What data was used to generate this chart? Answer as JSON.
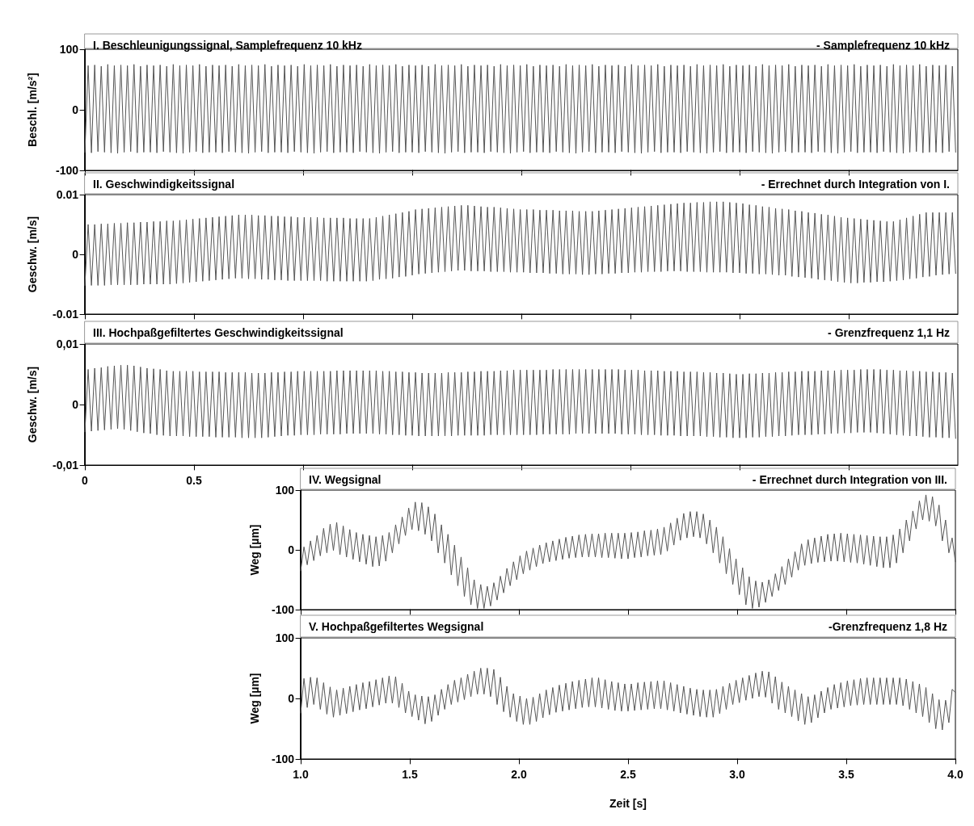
{
  "chart_data": [
    {
      "type": "line",
      "title": "I. Beschleunigungssignal, Samplefrequenz 10 kHz",
      "subtitle": "- Samplefrequenz 10 kHz",
      "ylabel": "Beschl. [m/s²]",
      "color": "#555555",
      "marker": "none",
      "tick_labels": "y",
      "xlim": [
        0,
        4
      ],
      "xticks": [
        0,
        0.5,
        {
          "value": 1,
          "label": null
        },
        {
          "value": 1.5,
          "label": null
        },
        {
          "value": 2,
          "label": null
        },
        {
          "value": 2.5,
          "label": null
        },
        {
          "value": 3,
          "label": null
        },
        {
          "value": 3.5,
          "label": null
        }
      ],
      "ylim": [
        -100,
        100
      ],
      "yticks": [
        -100,
        0,
        100
      ],
      "x": [
        0,
        0.015,
        0.03,
        0.045,
        0.06,
        0.075,
        0.09,
        0.105,
        0.12,
        0.135,
        0.15,
        0.165,
        0.18,
        0.195,
        0.21,
        0.225,
        0.24,
        0.255,
        0.27,
        0.285,
        0.3,
        0.315,
        0.33,
        0.345,
        0.36,
        0.375,
        0.39,
        0.405,
        0.42,
        0.435,
        0.45,
        0.465,
        0.48,
        0.495,
        0.51,
        0.525,
        0.54,
        0.555,
        0.57,
        0.585,
        0.6,
        0.615,
        0.63,
        0.645,
        0.66,
        0.675,
        0.69,
        0.705,
        0.72,
        0.735,
        0.75,
        0.765,
        0.78,
        0.795,
        0.81,
        0.825,
        0.84,
        0.855,
        0.87,
        0.885,
        0.9,
        0.915,
        0.93,
        0.945,
        0.96,
        0.975,
        0.99,
        1.005,
        1.02,
        1.035,
        1.05,
        1.065,
        1.08,
        1.095,
        1.11,
        1.125,
        1.14,
        1.155,
        1.17,
        1.185,
        1.2,
        1.215,
        1.23,
        1.245,
        1.26,
        1.275,
        1.29,
        1.305,
        1.32,
        1.335,
        1.35,
        1.365,
        1.38,
        1.395,
        1.41,
        1.425,
        1.44,
        1.455,
        1.47,
        1.485,
        1.5,
        1.515,
        1.53,
        1.545,
        1.56,
        1.575,
        1.59,
        1.605,
        1.62,
        1.635,
        1.65,
        1.665,
        1.68,
        1.695,
        1.71,
        1.725,
        1.74,
        1.755,
        1.77,
        1.785,
        1.8,
        1.815,
        1.83,
        1.845,
        1.86,
        1.875,
        1.89,
        1.905,
        1.92,
        1.935,
        1.95,
        1.965,
        1.98,
        1.995,
        2.01,
        2.025,
        2.04,
        2.055,
        2.07,
        2.085,
        2.1,
        2.115,
        2.13,
        2.145,
        2.16,
        2.175,
        2.19,
        2.205,
        2.22,
        2.235,
        2.25,
        2.265,
        2.28,
        2.295,
        2.31,
        2.325,
        2.34,
        2.355,
        2.37,
        2.385,
        2.4,
        2.415,
        2.43,
        2.445,
        2.46,
        2.475,
        2.49,
        2.505,
        2.52,
        2.535,
        2.55,
        2.565,
        2.58,
        2.595,
        2.61,
        2.625,
        2.64,
        2.655,
        2.67,
        2.685,
        2.7,
        2.715,
        2.73,
        2.745,
        2.76,
        2.775,
        2.79,
        2.805,
        2.82,
        2.835,
        2.85,
        2.865,
        2.88,
        2.895,
        2.91,
        2.925,
        2.94,
        2.955,
        2.97,
        2.985,
        3,
        3.015,
        3.03,
        3.045,
        3.06,
        3.075,
        3.09,
        3.105,
        3.12,
        3.135,
        3.15,
        3.165,
        3.18,
        3.195,
        3.21,
        3.225,
        3.24,
        3.255,
        3.27,
        3.285,
        3.3,
        3.315,
        3.33,
        3.345,
        3.36,
        3.375,
        3.39,
        3.405,
        3.42,
        3.435,
        3.45,
        3.465,
        3.48,
        3.495,
        3.51,
        3.525,
        3.54,
        3.555,
        3.57,
        3.585,
        3.6,
        3.615,
        3.63,
        3.645,
        3.66,
        3.675,
        3.69,
        3.705,
        3.72,
        3.735,
        3.75,
        3.765,
        3.78,
        3.795,
        3.81,
        3.825,
        3.84,
        3.855,
        3.87,
        3.885,
        3.9,
        3.915,
        3.93,
        3.945,
        3.96,
        3.975,
        3.99
      ],
      "values": [
        -70,
        73,
        -71,
        74,
        -69,
        72,
        -70,
        75,
        -71,
        73,
        -72,
        74,
        -70,
        73,
        -69,
        75,
        -71,
        72,
        -70,
        74,
        -70,
        73,
        -71,
        74,
        -69,
        72,
        -70,
        75,
        -71,
        73,
        -72,
        74,
        -70,
        73,
        -69,
        75,
        -71,
        72,
        -70,
        74,
        -70,
        73,
        -71,
        74,
        -69,
        72,
        -70,
        75,
        -71,
        73,
        -72,
        74,
        -70,
        73,
        -69,
        75,
        -71,
        72,
        -70,
        74,
        -70,
        73,
        -71,
        74,
        -69,
        72,
        -70,
        75,
        -71,
        73,
        -72,
        74,
        -70,
        73,
        -69,
        75,
        -71,
        72,
        -70,
        74,
        -70,
        73,
        -71,
        74,
        -69,
        72,
        -70,
        75,
        -71,
        73,
        -72,
        74,
        -70,
        73,
        -69,
        75,
        -71,
        72,
        -70,
        74,
        -70,
        73,
        -71,
        74,
        -69,
        72,
        -70,
        75,
        -71,
        73,
        -72,
        74,
        -70,
        73,
        -69,
        75,
        -71,
        72,
        -70,
        74,
        -70,
        73,
        -71,
        74,
        -69,
        72,
        -70,
        75,
        -71,
        73,
        -72,
        74,
        -70,
        73,
        -69,
        75,
        -71,
        72,
        -70,
        74,
        -70,
        73,
        -71,
        74,
        -69,
        72,
        -70,
        75,
        -71,
        73,
        -72,
        74,
        -70,
        73,
        -69,
        75,
        -71,
        72,
        -70,
        74,
        -70,
        73,
        -71,
        74,
        -69,
        72,
        -70,
        75,
        -71,
        73,
        -72,
        74,
        -70,
        73,
        -69,
        75,
        -71,
        72,
        -70,
        74,
        -70,
        73,
        -71,
        74,
        -69,
        72,
        -70,
        75,
        -71,
        73,
        -72,
        74,
        -70,
        73,
        -69,
        75,
        -71,
        72,
        -70,
        74,
        -70,
        73,
        -71,
        74,
        -69,
        72,
        -70,
        75,
        -71,
        73,
        -72,
        74,
        -70,
        73,
        -69,
        75,
        -71,
        72,
        -70,
        74,
        -70,
        73,
        -71,
        74,
        -69,
        72,
        -70,
        75,
        -71,
        73,
        -72,
        74,
        -70,
        73,
        -69,
        75,
        -71,
        72,
        -70,
        74,
        -70,
        73,
        -71,
        74,
        -69,
        72,
        -70,
        75,
        -71,
        73,
        -72,
        74,
        -70,
        73,
        -69,
        75,
        -71,
        72,
        -70,
        74,
        -70,
        73,
        -71,
        74,
        -69,
        72,
        -70
      ]
    },
    {
      "type": "line",
      "title": "II. Geschwindigkeitssignal",
      "subtitle": "- Errechnet durch Integration von I.",
      "ylabel": "Geschw. [m/s]",
      "color": "#555555",
      "marker": "none",
      "tick_labels": "y",
      "xlim": [
        0,
        4
      ],
      "xticks": [
        0,
        0.5,
        {
          "value": 1,
          "label": null
        },
        {
          "value": 1.5,
          "label": null
        },
        {
          "value": 2,
          "label": null
        },
        {
          "value": 2.5,
          "label": null
        },
        {
          "value": 3,
          "label": null
        },
        {
          "value": 3.5,
          "label": null
        }
      ],
      "ylim": [
        -0.01,
        0.01
      ],
      "yticks": [
        -0.01,
        0,
        0.01
      ],
      "x": [
        0,
        0.015,
        0.03,
        0.045,
        0.06,
        0.075,
        0.09,
        0.105,
        0.12,
        0.135,
        0.15,
        0.165,
        0.18,
        0.195,
        0.21,
        0.225,
        0.24,
        0.255,
        0.27,
        0.285,
        0.3,
        0.315,
        0.33,
        0.345,
        0.36,
        0.375,
        0.39,
        0.405,
        0.42,
        0.435,
        0.45,
        0.465,
        0.48,
        0.495,
        0.51,
        0.525,
        0.54,
        0.555,
        0.57,
        0.585,
        0.6,
        0.615,
        0.63,
        0.645,
        0.66,
        0.675,
        0.69,
        0.705,
        0.72,
        0.735,
        0.75,
        0.765,
        0.78,
        0.795,
        0.81,
        0.825,
        0.84,
        0.855,
        0.87,
        0.885,
        0.9,
        0.915,
        0.93,
        0.945,
        0.96,
        0.975,
        0.99,
        1.005,
        1.02,
        1.035,
        1.05,
        1.065,
        1.08,
        1.095,
        1.11,
        1.125,
        1.14,
        1.155,
        1.17,
        1.185,
        1.2,
        1.215,
        1.23,
        1.245,
        1.26,
        1.275,
        1.29,
        1.305,
        1.32,
        1.335,
        1.35,
        1.365,
        1.38,
        1.395,
        1.41,
        1.425,
        1.44,
        1.455,
        1.47,
        1.485,
        1.5,
        1.515,
        1.53,
        1.545,
        1.56,
        1.575,
        1.59,
        1.605,
        1.62,
        1.635,
        1.65,
        1.665,
        1.68,
        1.695,
        1.71,
        1.725,
        1.74,
        1.755,
        1.77,
        1.785,
        1.8,
        1.815,
        1.83,
        1.845,
        1.86,
        1.875,
        1.89,
        1.905,
        1.92,
        1.935,
        1.95,
        1.965,
        1.98,
        1.995,
        2.01,
        2.025,
        2.04,
        2.055,
        2.07,
        2.085,
        2.1,
        2.115,
        2.13,
        2.145,
        2.16,
        2.175,
        2.19,
        2.205,
        2.22,
        2.235,
        2.25,
        2.265,
        2.28,
        2.295,
        2.31,
        2.325,
        2.34,
        2.355,
        2.37,
        2.385,
        2.4,
        2.415,
        2.43,
        2.445,
        2.46,
        2.475,
        2.49,
        2.505,
        2.52,
        2.535,
        2.55,
        2.565,
        2.58,
        2.595,
        2.61,
        2.625,
        2.64,
        2.655,
        2.67,
        2.685,
        2.7,
        2.715,
        2.73,
        2.745,
        2.76,
        2.775,
        2.79,
        2.805,
        2.82,
        2.835,
        2.85,
        2.865,
        2.88,
        2.895,
        2.91,
        2.925,
        2.94,
        2.955,
        2.97,
        2.985,
        3,
        3.015,
        3.03,
        3.045,
        3.06,
        3.075,
        3.09,
        3.105,
        3.12,
        3.135,
        3.15,
        3.165,
        3.18,
        3.195,
        3.21,
        3.225,
        3.24,
        3.255,
        3.27,
        3.285,
        3.3,
        3.315,
        3.33,
        3.345,
        3.36,
        3.375,
        3.39,
        3.405,
        3.42,
        3.435,
        3.45,
        3.465,
        3.48,
        3.495,
        3.51,
        3.525,
        3.54,
        3.555,
        3.57,
        3.585,
        3.6,
        3.615,
        3.63,
        3.645,
        3.66,
        3.675,
        3.69,
        3.705,
        3.72,
        3.735,
        3.75,
        3.765,
        3.78,
        3.795,
        3.81,
        3.825,
        3.84,
        3.855,
        3.87,
        3.885,
        3.9,
        3.915,
        3.93,
        3.945,
        3.96,
        3.975,
        3.99
      ],
      "values": [
        -0.0052,
        0.005,
        -0.0052,
        0.005,
        -0.0052,
        0.0051,
        -0.0052,
        0.0051,
        -0.0051,
        0.0052,
        -0.0051,
        0.0052,
        -0.0051,
        0.0053,
        -0.0051,
        0.0053,
        -0.0051,
        0.0054,
        -0.005,
        0.0054,
        -0.005,
        0.0055,
        -0.005,
        0.0055,
        -0.005,
        0.0056,
        -0.005,
        0.0056,
        -0.0049,
        0.0057,
        -0.0048,
        0.0058,
        -0.0047,
        0.0059,
        -0.0046,
        0.006,
        -0.0045,
        0.0061,
        -0.0044,
        0.0062,
        -0.0043,
        0.0063,
        -0.0042,
        0.0064,
        -0.0041,
        0.0065,
        -0.004,
        0.0066,
        -0.004,
        0.0066,
        -0.0041,
        0.0066,
        -0.0041,
        0.0065,
        -0.0042,
        0.0065,
        -0.0042,
        0.0064,
        -0.0043,
        0.0064,
        -0.0043,
        0.0063,
        -0.0044,
        0.0063,
        -0.0044,
        0.0062,
        -0.0044,
        0.0062,
        -0.0044,
        0.0062,
        -0.0044,
        0.0062,
        -0.0044,
        0.0061,
        -0.0045,
        0.0061,
        -0.0045,
        0.0061,
        -0.0045,
        0.0061,
        -0.0045,
        0.006,
        -0.0045,
        0.006,
        -0.0045,
        0.006,
        -0.0045,
        0.006,
        -0.0044,
        0.0062,
        -0.0042,
        0.0064,
        -0.0041,
        0.0066,
        -0.004,
        0.0068,
        -0.0038,
        0.007,
        -0.0037,
        0.0072,
        -0.0035,
        0.0075,
        -0.0033,
        0.0076,
        -0.0032,
        0.0077,
        -0.0031,
        0.0078,
        -0.003,
        0.0079,
        -0.0029,
        0.008,
        -0.0028,
        0.0081,
        -0.0027,
        0.0082,
        -0.0027,
        0.0082,
        -0.0028,
        0.0081,
        -0.0028,
        0.008,
        -0.0028,
        0.0079,
        -0.0029,
        0.0079,
        -0.0029,
        0.0078,
        -0.0029,
        0.0077,
        -0.003,
        0.0076,
        -0.003,
        0.0075,
        -0.003,
        0.0075,
        -0.0031,
        0.0075,
        -0.0031,
        0.0074,
        -0.0031,
        0.0074,
        -0.0032,
        0.0074,
        -0.0032,
        0.0073,
        -0.0033,
        0.0073,
        -0.0033,
        0.0073,
        -0.0033,
        0.0072,
        -0.0034,
        0.0072,
        -0.0034,
        0.0072,
        -0.0033,
        0.0073,
        -0.0033,
        0.0074,
        -0.0032,
        0.0075,
        -0.0032,
        0.0076,
        -0.0031,
        0.0077,
        -0.0031,
        0.0078,
        -0.003,
        0.0079,
        -0.003,
        0.008,
        -0.0029,
        0.0081,
        -0.0029,
        0.0082,
        -0.0029,
        0.0083,
        -0.0028,
        0.0084,
        -0.0028,
        0.0085,
        -0.0028,
        0.0086,
        -0.0029,
        0.0086,
        -0.0029,
        0.0087,
        -0.0029,
        0.0087,
        -0.003,
        0.0088,
        -0.003,
        0.0088,
        -0.003,
        0.0088,
        -0.003,
        0.0087,
        -0.0031,
        0.0086,
        -0.0031,
        0.0085,
        -0.0032,
        0.0083,
        -0.0032,
        0.0082,
        -0.0033,
        0.008,
        -0.0033,
        0.0079,
        -0.0034,
        0.0077,
        -0.0035,
        0.0076,
        -0.0035,
        0.0075,
        -0.0037,
        0.0073,
        -0.0038,
        0.0072,
        -0.0039,
        0.007,
        -0.004,
        0.0069,
        -0.0042,
        0.0067,
        -0.0043,
        0.0066,
        -0.0044,
        0.0064,
        -0.0046,
        0.0062,
        -0.0047,
        0.0061,
        -0.0048,
        0.006,
        -0.0048,
        0.0059,
        -0.0047,
        0.0058,
        -0.0047,
        0.0057,
        -0.0046,
        0.0056,
        -0.0046,
        0.0055,
        -0.0045,
        0.0055,
        -0.0044,
        0.0058,
        -0.0043,
        0.0061,
        -0.0041,
        0.0064,
        -0.004,
        0.0067,
        -0.0038,
        0.007,
        -0.0037,
        0.007,
        -0.0035,
        0.007,
        -0.0034,
        0.007,
        -0.0033,
        0.007,
        -0.0032
      ]
    },
    {
      "type": "line",
      "title": "III. Hochpaßgefiltertes Geschwindigkeitssignal",
      "subtitle": "- Grenzfrequenz 1,1 Hz",
      "ylabel": "Geschw. [m/s]",
      "color": "#555555",
      "marker": "none",
      "xlim": [
        0,
        4
      ],
      "xticks": [
        0,
        0.5,
        {
          "value": 1,
          "label": null
        },
        {
          "value": 1.5,
          "label": null
        },
        {
          "value": 2,
          "label": null
        },
        {
          "value": 2.5,
          "label": null
        },
        {
          "value": 3,
          "label": null
        },
        {
          "value": 3.5,
          "label": null
        }
      ],
      "ylim": [
        -0.01,
        0.01
      ],
      "yticks": [
        {
          "value": -0.01,
          "label": "-0,01"
        },
        0,
        {
          "value": 0.01,
          "label": "0,01"
        }
      ],
      "x": [
        0,
        0.015,
        0.03,
        0.045,
        0.06,
        0.075,
        0.09,
        0.105,
        0.12,
        0.135,
        0.15,
        0.165,
        0.18,
        0.195,
        0.21,
        0.225,
        0.24,
        0.255,
        0.27,
        0.285,
        0.3,
        0.315,
        0.33,
        0.345,
        0.36,
        0.375,
        0.39,
        0.405,
        0.42,
        0.435,
        0.45,
        0.465,
        0.48,
        0.495,
        0.51,
        0.525,
        0.54,
        0.555,
        0.57,
        0.585,
        0.6,
        0.615,
        0.63,
        0.645,
        0.66,
        0.675,
        0.69,
        0.705,
        0.72,
        0.735,
        0.75,
        0.765,
        0.78,
        0.795,
        0.81,
        0.825,
        0.84,
        0.855,
        0.87,
        0.885,
        0.9,
        0.915,
        0.93,
        0.945,
        0.96,
        0.975,
        0.99,
        1.005,
        1.02,
        1.035,
        1.05,
        1.065,
        1.08,
        1.095,
        1.11,
        1.125,
        1.14,
        1.155,
        1.17,
        1.185,
        1.2,
        1.215,
        1.23,
        1.245,
        1.26,
        1.275,
        1.29,
        1.305,
        1.32,
        1.335,
        1.35,
        1.365,
        1.38,
        1.395,
        1.41,
        1.425,
        1.44,
        1.455,
        1.47,
        1.485,
        1.5,
        1.515,
        1.53,
        1.545,
        1.56,
        1.575,
        1.59,
        1.605,
        1.62,
        1.635,
        1.65,
        1.665,
        1.68,
        1.695,
        1.71,
        1.725,
        1.74,
        1.755,
        1.77,
        1.785,
        1.8,
        1.815,
        1.83,
        1.845,
        1.86,
        1.875,
        1.89,
        1.905,
        1.92,
        1.935,
        1.95,
        1.965,
        1.98,
        1.995,
        2.01,
        2.025,
        2.04,
        2.055,
        2.07,
        2.085,
        2.1,
        2.115,
        2.13,
        2.145,
        2.16,
        2.175,
        2.19,
        2.205,
        2.22,
        2.235,
        2.25,
        2.265,
        2.28,
        2.295,
        2.31,
        2.325,
        2.34,
        2.355,
        2.37,
        2.385,
        2.4,
        2.415,
        2.43,
        2.445,
        2.46,
        2.475,
        2.49,
        2.505,
        2.52,
        2.535,
        2.55,
        2.565,
        2.58,
        2.595,
        2.61,
        2.625,
        2.64,
        2.655,
        2.67,
        2.685,
        2.7,
        2.715,
        2.73,
        2.745,
        2.76,
        2.775,
        2.79,
        2.805,
        2.82,
        2.835,
        2.85,
        2.865,
        2.88,
        2.895,
        2.91,
        2.925,
        2.94,
        2.955,
        2.97,
        2.985,
        3,
        3.015,
        3.03,
        3.045,
        3.06,
        3.075,
        3.09,
        3.105,
        3.12,
        3.135,
        3.15,
        3.165,
        3.18,
        3.195,
        3.21,
        3.225,
        3.24,
        3.255,
        3.27,
        3.285,
        3.3,
        3.315,
        3.33,
        3.345,
        3.36,
        3.375,
        3.39,
        3.405,
        3.42,
        3.435,
        3.45,
        3.465,
        3.48,
        3.495,
        3.51,
        3.525,
        3.54,
        3.555,
        3.57,
        3.585,
        3.6,
        3.615,
        3.63,
        3.645,
        3.66,
        3.675,
        3.69,
        3.705,
        3.72,
        3.735,
        3.75,
        3.765,
        3.78,
        3.795,
        3.81,
        3.825,
        3.84,
        3.855,
        3.87,
        3.885,
        3.9,
        3.915,
        3.93,
        3.945,
        3.96,
        3.975,
        3.99
      ],
      "values": [
        -0.0045,
        0.0058,
        -0.0044,
        0.006,
        -0.0043,
        0.0061,
        -0.0042,
        0.0063,
        -0.0041,
        0.0064,
        -0.004,
        0.0065,
        -0.0041,
        0.0065,
        -0.0043,
        0.0064,
        -0.0045,
        0.0062,
        -0.0047,
        0.006,
        -0.0048,
        0.0059,
        -0.005,
        0.0058,
        -0.0051,
        0.0056,
        -0.0052,
        0.0055,
        -0.0052,
        0.0055,
        -0.0052,
        0.0055,
        -0.0053,
        0.0055,
        -0.0053,
        0.0054,
        -0.0053,
        0.0054,
        -0.0053,
        0.0054,
        -0.0054,
        0.0054,
        -0.0054,
        0.0053,
        -0.0054,
        0.0053,
        -0.0054,
        0.0053,
        -0.0055,
        0.0053,
        -0.0055,
        0.0052,
        -0.0055,
        0.0052,
        -0.0055,
        0.0052,
        -0.0054,
        0.0053,
        -0.0053,
        0.0053,
        -0.0052,
        0.0054,
        -0.0051,
        0.0054,
        -0.0051,
        0.0055,
        -0.005,
        0.0055,
        -0.005,
        0.0055,
        -0.005,
        0.0055,
        -0.0049,
        0.0055,
        -0.0049,
        0.0055,
        -0.0049,
        0.0056,
        -0.0049,
        0.0056,
        -0.0048,
        0.0056,
        -0.0048,
        0.0056,
        -0.0048,
        0.0056,
        -0.0048,
        0.0056,
        -0.0048,
        0.0056,
        -0.0049,
        0.0055,
        -0.0049,
        0.0055,
        -0.005,
        0.0054,
        -0.005,
        0.0054,
        -0.0051,
        0.0053,
        -0.0051,
        0.0053,
        -0.0052,
        0.0052,
        -0.0052,
        0.0052,
        -0.0052,
        0.0052,
        -0.0052,
        0.0052,
        -0.0052,
        0.0053,
        -0.0052,
        0.0053,
        -0.0051,
        0.0053,
        -0.0051,
        0.0054,
        -0.0051,
        0.0054,
        -0.0051,
        0.0055,
        -0.0051,
        0.0055,
        -0.005,
        0.0055,
        -0.005,
        0.0056,
        -0.005,
        0.0056,
        -0.005,
        0.0057,
        -0.005,
        0.0057,
        -0.005,
        0.0057,
        -0.005,
        0.0057,
        -0.005,
        0.0057,
        -0.0049,
        0.0057,
        -0.0049,
        0.0058,
        -0.0049,
        0.0058,
        -0.0049,
        0.0058,
        -0.0049,
        0.0058,
        -0.0048,
        0.0058,
        -0.0048,
        0.0058,
        -0.0048,
        0.0058,
        -0.0048,
        0.0058,
        -0.0048,
        0.0058,
        -0.0048,
        0.0058,
        -0.0048,
        0.0058,
        -0.0049,
        0.0057,
        -0.0049,
        0.0057,
        -0.0049,
        0.0057,
        -0.005,
        0.0056,
        -0.005,
        0.0056,
        -0.005,
        0.0056,
        -0.0051,
        0.0055,
        -0.0051,
        0.0055,
        -0.0051,
        0.0055,
        -0.0052,
        0.0054,
        -0.0052,
        0.0054,
        -0.0052,
        0.0054,
        -0.0052,
        0.0053,
        -0.0053,
        0.0053,
        -0.0053,
        0.0052,
        -0.0054,
        0.0052,
        -0.0054,
        0.0051,
        -0.0055,
        0.005,
        -0.0055,
        0.005,
        -0.0055,
        0.0051,
        -0.0054,
        0.0051,
        -0.0054,
        0.0052,
        -0.0053,
        0.0052,
        -0.0053,
        0.0053,
        -0.0052,
        0.0053,
        -0.0052,
        0.0054,
        -0.0051,
        0.0054,
        -0.005,
        0.0055,
        -0.005,
        0.0055,
        -0.005,
        0.0055,
        -0.0049,
        0.0056,
        -0.0049,
        0.0056,
        -0.0048,
        0.0056,
        -0.0048,
        0.0057,
        -0.0047,
        0.0057,
        -0.0047,
        0.0057,
        -0.0046,
        0.0058,
        -0.0046,
        0.0058,
        -0.0046,
        0.0058,
        -0.0047,
        0.0058,
        -0.0048,
        0.0057,
        -0.0049,
        0.0057,
        -0.005,
        0.0056,
        -0.0051,
        0.0056,
        -0.0052,
        0.0055,
        -0.0052,
        0.0055,
        -0.0053,
        0.0054,
        -0.0054,
        0.0054,
        -0.0054,
        0.0053,
        -0.0055,
        0.0053,
        -0.0055,
        0.0052,
        -0.0056
      ]
    },
    {
      "type": "line",
      "title": "IV. Wegsignal",
      "subtitle": "- Errechnet durch Integration von III.",
      "ylabel": "Weg [µm]",
      "color": "#555555",
      "marker": "none",
      "tick_labels": "y",
      "xlim": [
        1,
        4
      ],
      "xticks": [
        1,
        1.5,
        2,
        2.5,
        3,
        3.5,
        4
      ],
      "ylim": [
        -100,
        100
      ],
      "yticks": [
        -100,
        0,
        100
      ],
      "x": [
        1,
        1.015,
        1.03,
        1.045,
        1.06,
        1.075,
        1.09,
        1.105,
        1.12,
        1.135,
        1.15,
        1.165,
        1.18,
        1.195,
        1.21,
        1.225,
        1.24,
        1.255,
        1.27,
        1.285,
        1.3,
        1.315,
        1.33,
        1.345,
        1.36,
        1.375,
        1.39,
        1.405,
        1.42,
        1.435,
        1.45,
        1.465,
        1.48,
        1.495,
        1.51,
        1.525,
        1.54,
        1.555,
        1.57,
        1.585,
        1.6,
        1.615,
        1.63,
        1.645,
        1.66,
        1.675,
        1.69,
        1.705,
        1.72,
        1.735,
        1.75,
        1.765,
        1.78,
        1.795,
        1.81,
        1.825,
        1.84,
        1.855,
        1.87,
        1.885,
        1.9,
        1.915,
        1.93,
        1.945,
        1.96,
        1.975,
        1.99,
        2.005,
        2.02,
        2.035,
        2.05,
        2.065,
        2.08,
        2.095,
        2.11,
        2.125,
        2.14,
        2.155,
        2.17,
        2.185,
        2.2,
        2.215,
        2.23,
        2.245,
        2.26,
        2.275,
        2.29,
        2.305,
        2.32,
        2.335,
        2.35,
        2.365,
        2.38,
        2.395,
        2.41,
        2.425,
        2.44,
        2.455,
        2.47,
        2.485,
        2.5,
        2.515,
        2.53,
        2.545,
        2.56,
        2.575,
        2.59,
        2.605,
        2.62,
        2.635,
        2.65,
        2.665,
        2.68,
        2.695,
        2.71,
        2.725,
        2.74,
        2.755,
        2.77,
        2.785,
        2.8,
        2.815,
        2.83,
        2.845,
        2.86,
        2.875,
        2.89,
        2.905,
        2.92,
        2.935,
        2.95,
        2.965,
        2.98,
        2.995,
        3.01,
        3.025,
        3.04,
        3.055,
        3.07,
        3.085,
        3.1,
        3.115,
        3.13,
        3.145,
        3.16,
        3.175,
        3.19,
        3.205,
        3.22,
        3.235,
        3.25,
        3.265,
        3.28,
        3.295,
        3.31,
        3.325,
        3.34,
        3.355,
        3.37,
        3.385,
        3.4,
        3.415,
        3.43,
        3.445,
        3.46,
        3.475,
        3.49,
        3.505,
        3.52,
        3.535,
        3.55,
        3.565,
        3.58,
        3.595,
        3.61,
        3.625,
        3.64,
        3.655,
        3.67,
        3.685,
        3.7,
        3.715,
        3.73,
        3.745,
        3.76,
        3.775,
        3.79,
        3.805,
        3.82,
        3.835,
        3.85,
        3.865,
        3.88,
        3.895,
        3.91,
        3.925,
        3.94,
        3.955,
        3.97,
        3.985,
        4
      ],
      "values": [
        -35,
        5,
        -25,
        15,
        -18,
        24,
        -10,
        36,
        -5,
        43,
        -1,
        46,
        -8,
        40,
        -12,
        34,
        -16,
        29,
        -20,
        26,
        -24,
        24,
        -28,
        22,
        -27,
        24,
        -19,
        29,
        -5,
        42,
        10,
        55,
        24,
        70,
        34,
        80,
        32,
        79,
        26,
        72,
        15,
        60,
        -5,
        42,
        -22,
        26,
        -42,
        8,
        -60,
        -12,
        -78,
        -30,
        -92,
        -50,
        -98,
        -58,
        -98,
        -61,
        -94,
        -55,
        -84,
        -44,
        -72,
        -31,
        -60,
        -20,
        -50,
        -10,
        -40,
        -2,
        -34,
        3,
        -28,
        8,
        -23,
        12,
        -20,
        15,
        -18,
        18,
        -16,
        21,
        -14,
        23,
        -13,
        25,
        -12,
        26,
        -12,
        27,
        -12,
        27,
        -13,
        28,
        -13,
        28,
        -14,
        28,
        -15,
        28,
        -15,
        29,
        -13,
        30,
        -12,
        32,
        -10,
        33,
        -9,
        35,
        -8,
        38,
        -2,
        45,
        8,
        53,
        16,
        61,
        20,
        64,
        22,
        64,
        20,
        60,
        10,
        50,
        -5,
        38,
        -22,
        22,
        -40,
        2,
        -58,
        -15,
        -75,
        -30,
        -92,
        -45,
        -98,
        -52,
        -96,
        -54,
        -88,
        -50,
        -78,
        -40,
        -68,
        -28,
        -58,
        -15,
        -46,
        -3,
        -34,
        10,
        -26,
        17,
        -23,
        20,
        -21,
        23,
        -20,
        26,
        -19,
        27,
        -19,
        28,
        -20,
        27,
        -21,
        26,
        -22,
        25,
        -24,
        24,
        -26,
        23,
        -28,
        22,
        -30,
        22,
        -30,
        25,
        -22,
        35,
        -5,
        50,
        15,
        65,
        35,
        82,
        50,
        92,
        48,
        89,
        40,
        75,
        15,
        50,
        -5,
        20,
        -20
      ]
    },
    {
      "type": "line",
      "title": "V. Hochpaßgefiltertes Wegsignal",
      "subtitle": "-Grenzfrequenz 1,8 Hz",
      "ylabel": "Weg [µm]",
      "xlabel": "Zeit [s]",
      "color": "#555555",
      "marker": "none",
      "xlim": [
        1,
        4
      ],
      "xticks": [
        {
          "value": 1,
          "label": "1.0"
        },
        1.5,
        {
          "value": 2,
          "label": "2.0"
        },
        2.5,
        {
          "value": 3,
          "label": "3.0"
        },
        3.5,
        {
          "value": 4,
          "label": "4.0"
        }
      ],
      "ylim": [
        -100,
        100
      ],
      "yticks": [
        -100,
        0,
        100
      ],
      "x": [
        1,
        1.015,
        1.03,
        1.045,
        1.06,
        1.075,
        1.09,
        1.105,
        1.12,
        1.135,
        1.15,
        1.165,
        1.18,
        1.195,
        1.21,
        1.225,
        1.24,
        1.255,
        1.27,
        1.285,
        1.3,
        1.315,
        1.33,
        1.345,
        1.36,
        1.375,
        1.39,
        1.405,
        1.42,
        1.435,
        1.45,
        1.465,
        1.48,
        1.495,
        1.51,
        1.525,
        1.54,
        1.555,
        1.57,
        1.585,
        1.6,
        1.615,
        1.63,
        1.645,
        1.66,
        1.675,
        1.69,
        1.705,
        1.72,
        1.735,
        1.75,
        1.765,
        1.78,
        1.795,
        1.81,
        1.825,
        1.84,
        1.855,
        1.87,
        1.885,
        1.9,
        1.915,
        1.93,
        1.945,
        1.96,
        1.975,
        1.99,
        2.005,
        2.02,
        2.035,
        2.05,
        2.065,
        2.08,
        2.095,
        2.11,
        2.125,
        2.14,
        2.155,
        2.17,
        2.185,
        2.2,
        2.215,
        2.23,
        2.245,
        2.26,
        2.275,
        2.29,
        2.305,
        2.32,
        2.335,
        2.35,
        2.365,
        2.38,
        2.395,
        2.41,
        2.425,
        2.44,
        2.455,
        2.47,
        2.485,
        2.5,
        2.515,
        2.53,
        2.545,
        2.56,
        2.575,
        2.59,
        2.605,
        2.62,
        2.635,
        2.65,
        2.665,
        2.68,
        2.695,
        2.71,
        2.725,
        2.74,
        2.755,
        2.77,
        2.785,
        2.8,
        2.815,
        2.83,
        2.845,
        2.86,
        2.875,
        2.89,
        2.905,
        2.92,
        2.935,
        2.95,
        2.965,
        2.98,
        2.995,
        3.01,
        3.025,
        3.04,
        3.055,
        3.07,
        3.085,
        3.1,
        3.115,
        3.13,
        3.145,
        3.16,
        3.175,
        3.19,
        3.205,
        3.22,
        3.235,
        3.25,
        3.265,
        3.28,
        3.295,
        3.31,
        3.325,
        3.34,
        3.355,
        3.37,
        3.385,
        3.4,
        3.415,
        3.43,
        3.445,
        3.46,
        3.475,
        3.49,
        3.505,
        3.52,
        3.535,
        3.55,
        3.565,
        3.58,
        3.595,
        3.61,
        3.625,
        3.64,
        3.655,
        3.67,
        3.685,
        3.7,
        3.715,
        3.73,
        3.745,
        3.76,
        3.775,
        3.79,
        3.805,
        3.82,
        3.835,
        3.85,
        3.865,
        3.88,
        3.895,
        3.91,
        3.925,
        3.94,
        3.955,
        3.97,
        3.985,
        4
      ],
      "values": [
        -24,
        33,
        -15,
        35,
        -10,
        34,
        -18,
        26,
        -26,
        19,
        -31,
        14,
        -28,
        17,
        -25,
        20,
        -22,
        23,
        -19,
        26,
        -17,
        28,
        -14,
        31,
        -11,
        34,
        -8,
        37,
        -8,
        36,
        -15,
        25,
        -24,
        12,
        -30,
        6,
        -36,
        4,
        -42,
        3,
        -38,
        6,
        -28,
        15,
        -18,
        23,
        -10,
        30,
        -6,
        34,
        -2,
        40,
        3,
        45,
        7,
        50,
        7,
        50,
        3,
        48,
        -10,
        35,
        -22,
        20,
        -31,
        8,
        -38,
        4,
        -43,
        0,
        -43,
        2,
        -38,
        8,
        -32,
        14,
        -27,
        18,
        -23,
        22,
        -21,
        25,
        -19,
        28,
        -17,
        30,
        -15,
        32,
        -14,
        34,
        -14,
        34,
        -16,
        31,
        -18,
        28,
        -20,
        26,
        -21,
        24,
        -21,
        24,
        -20,
        26,
        -19,
        27,
        -18,
        28,
        -17,
        29,
        -17,
        29,
        -19,
        26,
        -21,
        23,
        -24,
        20,
        -26,
        17,
        -28,
        15,
        -30,
        14,
        -31,
        14,
        -31,
        15,
        -25,
        20,
        -18,
        25,
        -10,
        30,
        -7,
        34,
        -3,
        38,
        0,
        42,
        3,
        45,
        2,
        44,
        -8,
        36,
        -18,
        27,
        -24,
        20,
        -30,
        14,
        -37,
        8,
        -43,
        3,
        -40,
        6,
        -32,
        12,
        -24,
        18,
        -18,
        23,
        -16,
        26,
        -14,
        29,
        -12,
        31,
        -11,
        33,
        -10,
        34,
        -10,
        34,
        -10,
        34,
        -10,
        34,
        -10,
        34,
        -10,
        34,
        -12,
        32,
        -18,
        28,
        -24,
        24,
        -30,
        18,
        -40,
        8,
        -50,
        -2,
        -52,
        -3,
        -40,
        15,
        10
      ]
    }
  ]
}
